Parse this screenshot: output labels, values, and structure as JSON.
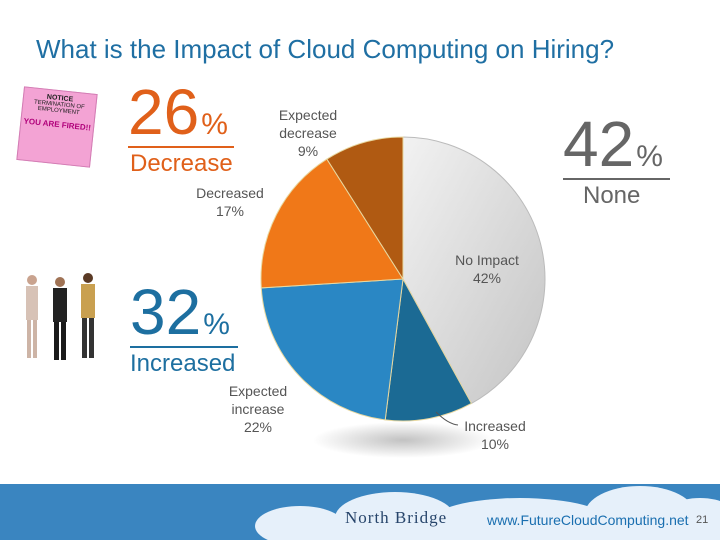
{
  "title": "What is the Impact of Cloud Computing on Hiring?",
  "stats": {
    "decrease": {
      "value": "26",
      "pct": "%",
      "label": "Decrease"
    },
    "increased": {
      "value": "32",
      "pct": "%",
      "label": "Increased"
    },
    "none": {
      "value": "42",
      "pct": "%",
      "label": "None"
    }
  },
  "notice_text": {
    "header": "NOTICE",
    "sub": "TERMINATION OF EMPLOYMENT",
    "fired": "YOU ARE FIRED!!"
  },
  "footer": {
    "brand": "North Bridge",
    "url": "www.FutureCloudComputing.net",
    "page": "21"
  },
  "colors": {
    "title": "#1f6fa3",
    "decrease": "#e0601a",
    "increase": "#1d6fa0",
    "none": "#666666"
  },
  "chart_data": {
    "type": "pie",
    "slices": [
      {
        "label": "No Impact",
        "value": 42,
        "display": "42%",
        "color": "#d9d9d9"
      },
      {
        "label": "Increased",
        "value": 10,
        "display": "10%",
        "color": "#1b6a94"
      },
      {
        "label": "Expected increase",
        "value": 22,
        "display": "22%",
        "color": "#2a87c4"
      },
      {
        "label": "Decreased",
        "value": 17,
        "display": "17%",
        "color": "#f07818"
      },
      {
        "label": "Expected decrease",
        "value": 9,
        "display": "9%",
        "color": "#b05a12"
      }
    ]
  }
}
